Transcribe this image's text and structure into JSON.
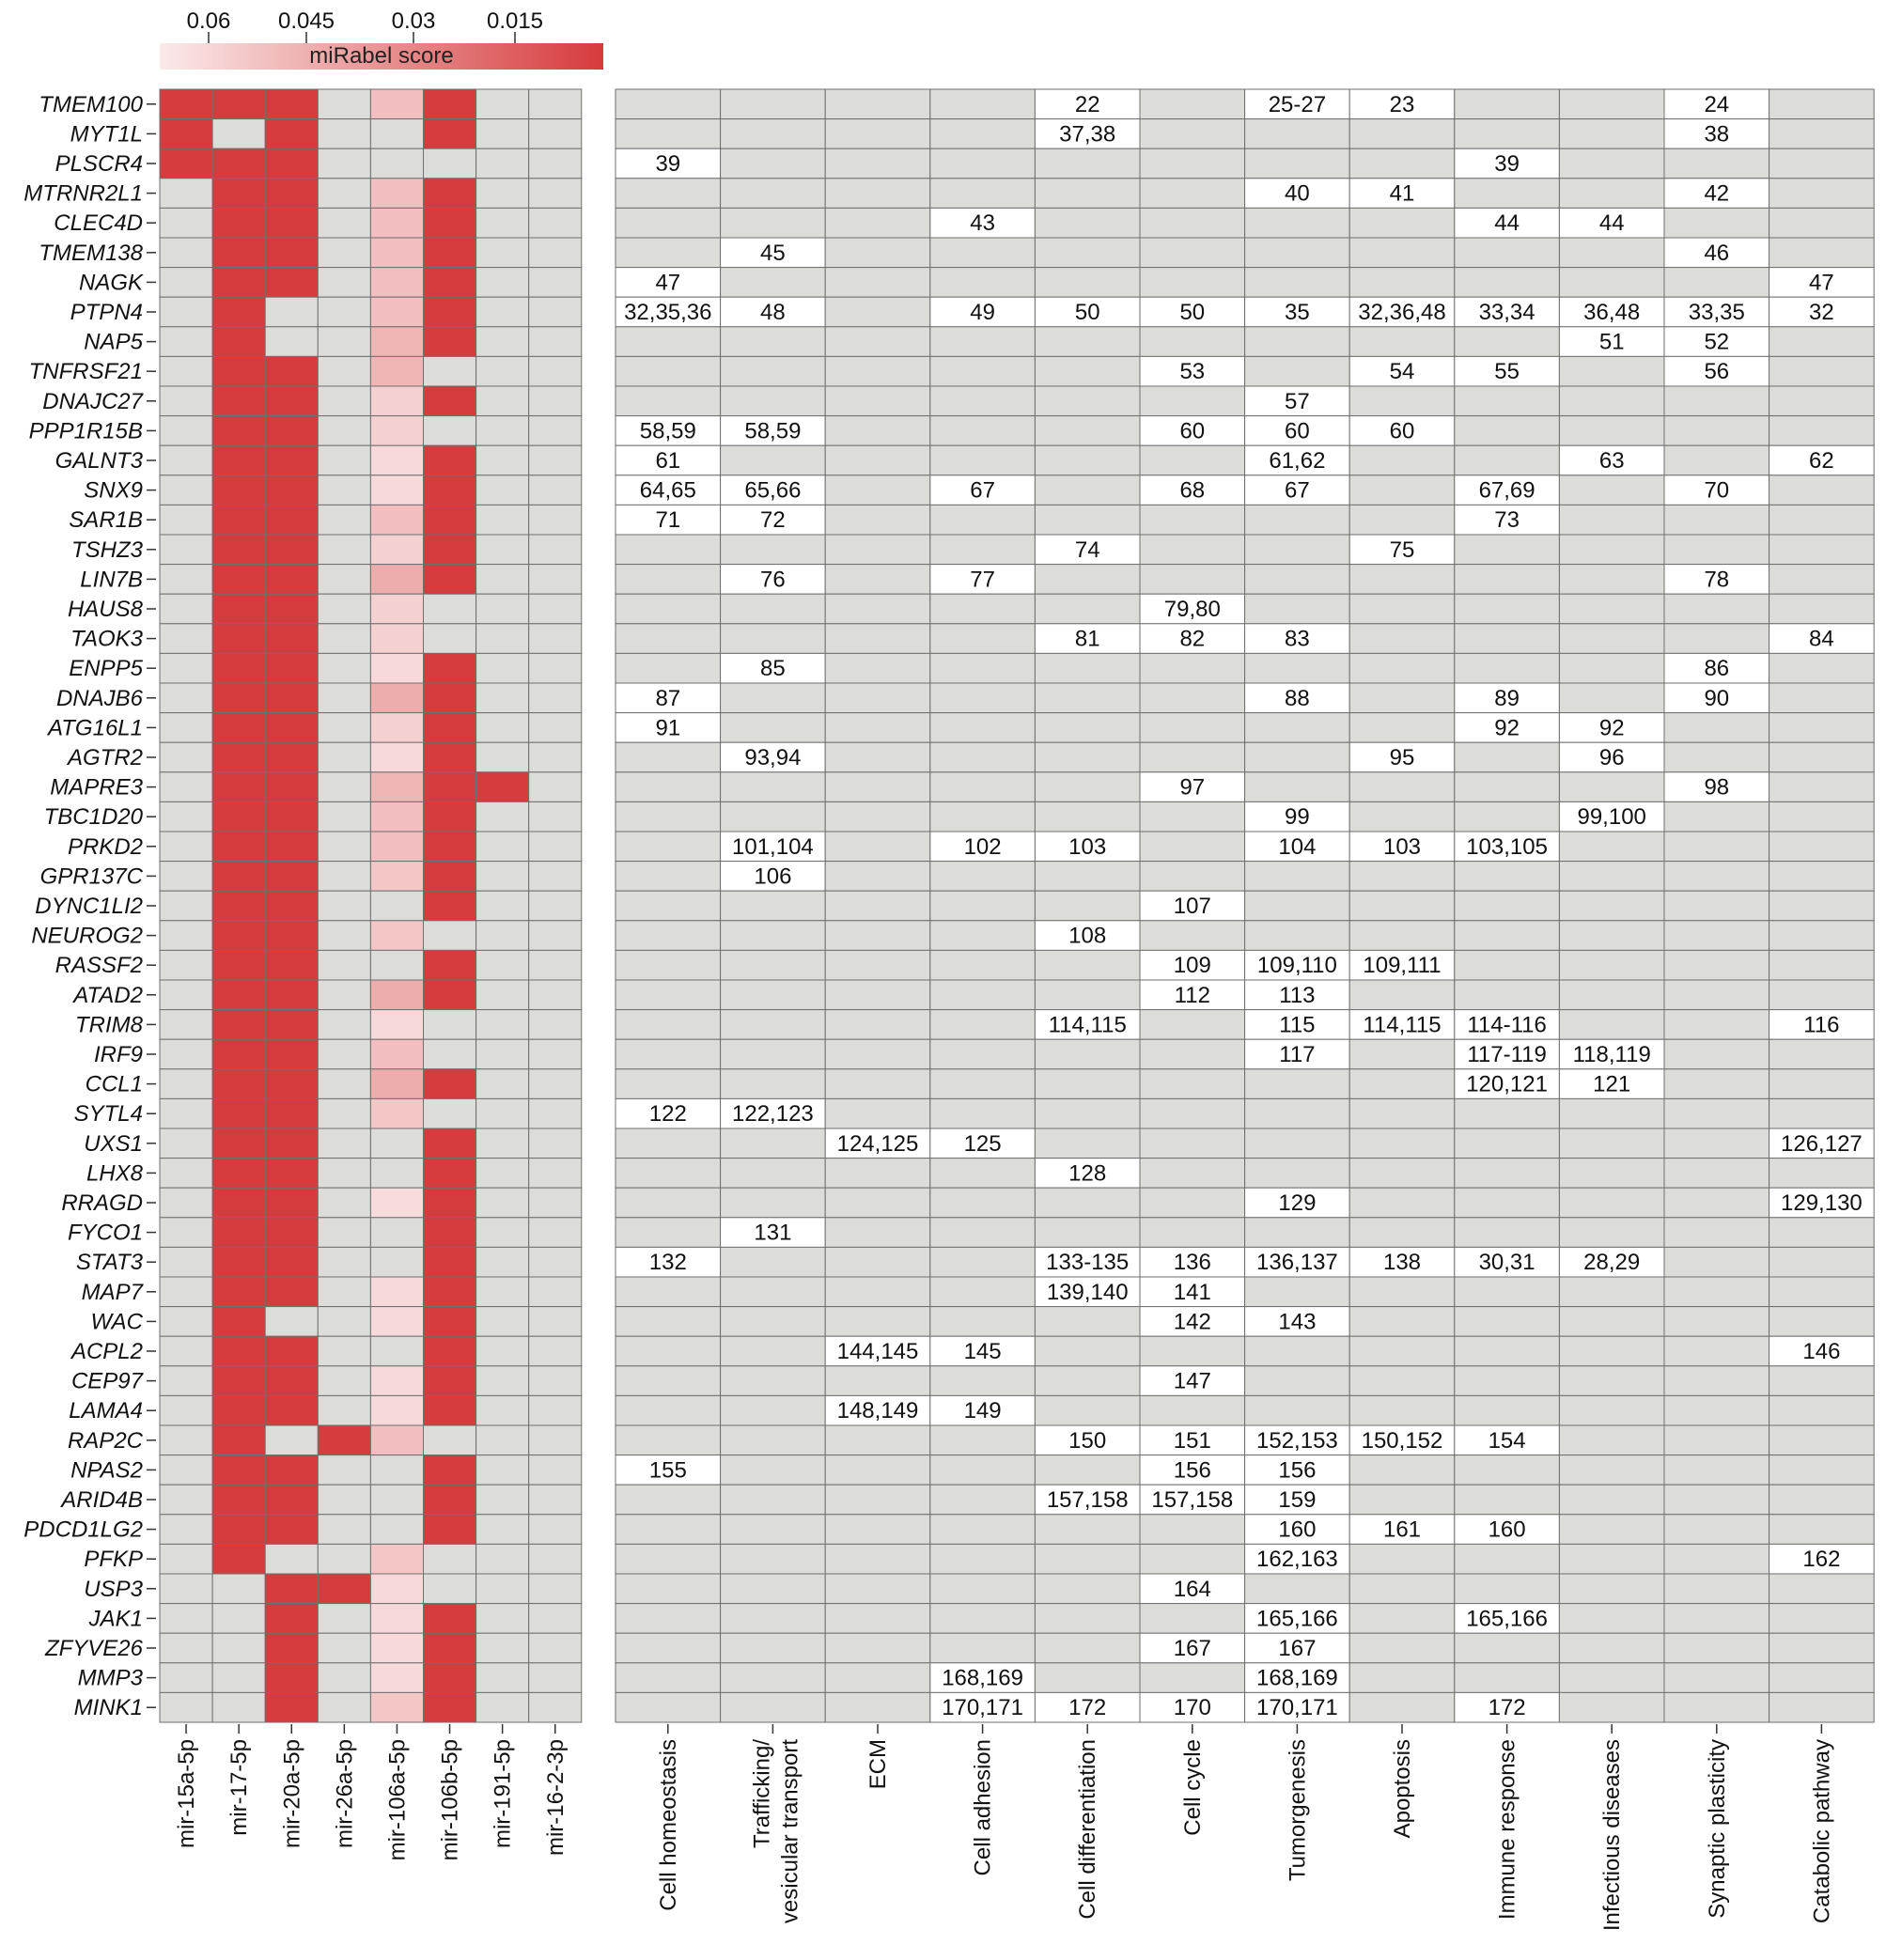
{
  "chart_data": {
    "type": "heatmap",
    "colorbar": {
      "title": "miRabel score",
      "ticks": [
        "0.06",
        "0.045",
        "0.03",
        "0.015"
      ],
      "colors": {
        "high": "#d63b3d",
        "low": "#fbeaea",
        "missing": "#dcdcd8"
      }
    },
    "genes": [
      "TMEM100",
      "MYT1L",
      "PLSCR4",
      "MTRNR2L1",
      "CLEC4D",
      "TMEM138",
      "NAGK",
      "PTPN4",
      "NAP5",
      "TNFRSF21",
      "DNAJC27",
      "PPP1R15B",
      "GALNT3",
      "SNX9",
      "SAR1B",
      "TSHZ3",
      "LIN7B",
      "HAUS8",
      "TAOK3",
      "ENPP5",
      "DNAJB6",
      "ATG16L1",
      "AGTR2",
      "MAPRE3",
      "TBC1D20",
      "PRKD2",
      "GPR137C",
      "DYNC1LI2",
      "NEUROG2",
      "RASSF2",
      "ATAD2",
      "TRIM8",
      "IRF9",
      "CCL1",
      "SYTL4",
      "UXS1",
      "LHX8",
      "RRAGD",
      "FYCO1",
      "STAT3",
      "MAP7",
      "WAC",
      "ACPL2",
      "CEP97",
      "LAMA4",
      "RAP2C",
      "NPAS2",
      "ARID4B",
      "PDCD1LG2",
      "PFKP",
      "USP3",
      "JAK1",
      "ZFYVE26",
      "MMP3",
      "MINK1"
    ],
    "mirnas": [
      "mir-15a-5p",
      "mir-17-5p",
      "mir-20a-5p",
      "mir-26a-5p",
      "mir-106a-5p",
      "mir-106b-5p",
      "mir-191-5p",
      "mir-16-2-3p"
    ],
    "heat_matrix": [
      [
        1,
        1,
        1,
        0,
        0.25,
        1,
        0,
        0
      ],
      [
        1,
        0,
        1,
        0,
        0,
        1,
        0,
        0
      ],
      [
        1,
        1,
        1,
        0,
        0,
        0,
        0,
        0
      ],
      [
        0,
        1,
        1,
        0,
        0.25,
        1,
        0,
        0
      ],
      [
        0,
        1,
        1,
        0,
        0.25,
        1,
        0,
        0
      ],
      [
        0,
        1,
        1,
        0,
        0.25,
        1,
        0,
        0
      ],
      [
        0,
        1,
        1,
        0,
        0.25,
        1,
        0,
        0
      ],
      [
        0,
        1,
        0,
        0,
        0.25,
        1,
        0,
        0
      ],
      [
        0,
        1,
        0,
        0,
        0.3,
        1,
        0,
        0
      ],
      [
        0,
        1,
        1,
        0,
        0.3,
        0,
        0,
        0
      ],
      [
        0,
        1,
        1,
        0,
        0.15,
        1,
        0,
        0
      ],
      [
        0,
        1,
        1,
        0,
        0.15,
        0,
        0,
        0
      ],
      [
        0,
        1,
        1,
        0,
        0.1,
        1,
        0,
        0
      ],
      [
        0,
        1,
        1,
        0,
        0.1,
        1,
        0,
        0
      ],
      [
        0,
        1,
        1,
        0,
        0.25,
        1,
        0,
        0
      ],
      [
        0,
        1,
        1,
        0,
        0.15,
        1,
        0,
        0
      ],
      [
        0,
        1,
        1,
        0,
        0.35,
        1,
        0,
        0
      ],
      [
        0,
        1,
        1,
        0,
        0.15,
        0,
        0,
        0
      ],
      [
        0,
        1,
        1,
        0,
        0.15,
        0,
        0,
        0
      ],
      [
        0,
        1,
        1,
        0,
        0.1,
        1,
        0,
        0
      ],
      [
        0,
        1,
        1,
        0,
        0.35,
        1,
        0,
        0
      ],
      [
        0,
        1,
        1,
        0,
        0.15,
        1,
        0,
        0
      ],
      [
        0,
        1,
        1,
        0,
        0.1,
        1,
        0,
        0
      ],
      [
        0,
        1,
        1,
        0,
        0.3,
        1,
        1,
        0
      ],
      [
        0,
        1,
        1,
        0,
        0.25,
        1,
        0,
        0
      ],
      [
        0,
        1,
        1,
        0,
        0.25,
        1,
        0,
        0
      ],
      [
        0,
        1,
        1,
        0,
        0.2,
        1,
        0,
        0
      ],
      [
        0,
        1,
        1,
        0,
        0,
        1,
        0,
        0
      ],
      [
        0,
        1,
        1,
        0,
        0.2,
        0,
        0,
        0
      ],
      [
        0,
        1,
        1,
        0,
        0,
        1,
        0,
        0
      ],
      [
        0,
        1,
        1,
        0,
        0.35,
        1,
        0,
        0
      ],
      [
        0,
        1,
        1,
        0,
        0.1,
        0,
        0,
        0
      ],
      [
        0,
        1,
        1,
        0,
        0.25,
        0,
        0,
        0
      ],
      [
        0,
        1,
        1,
        0,
        0.35,
        1,
        0,
        0
      ],
      [
        0,
        1,
        1,
        0,
        0.2,
        0,
        0,
        0
      ],
      [
        0,
        1,
        1,
        0,
        0,
        1,
        0,
        0
      ],
      [
        0,
        1,
        1,
        0,
        0,
        1,
        0,
        0
      ],
      [
        0,
        1,
        1,
        0,
        0.08,
        1,
        0,
        0
      ],
      [
        0,
        1,
        1,
        0,
        0,
        1,
        0,
        0
      ],
      [
        0,
        1,
        1,
        0,
        0,
        1,
        0,
        0
      ],
      [
        0,
        1,
        1,
        0,
        0.1,
        1,
        0,
        0
      ],
      [
        0,
        1,
        0,
        0,
        0.1,
        1,
        0,
        0
      ],
      [
        0,
        1,
        1,
        0,
        0,
        1,
        0,
        0
      ],
      [
        0,
        1,
        1,
        0,
        0.1,
        1,
        0,
        0
      ],
      [
        0,
        1,
        1,
        0,
        0.1,
        1,
        0,
        0
      ],
      [
        0,
        1,
        0,
        1,
        0.25,
        0,
        0,
        0
      ],
      [
        0,
        1,
        1,
        0,
        0,
        1,
        0,
        0
      ],
      [
        0,
        1,
        1,
        0,
        0,
        1,
        0,
        0
      ],
      [
        0,
        1,
        1,
        0,
        0,
        1,
        0,
        0
      ],
      [
        0,
        1,
        0,
        0,
        0.2,
        0,
        0,
        0
      ],
      [
        0,
        0,
        1,
        1,
        0.1,
        0,
        0,
        0
      ],
      [
        0,
        0,
        1,
        0,
        0.1,
        1,
        0,
        0
      ],
      [
        0,
        0,
        1,
        0,
        0.1,
        1,
        0,
        0
      ],
      [
        0,
        0,
        1,
        0,
        0.1,
        1,
        0,
        0
      ],
      [
        0,
        0,
        1,
        0,
        0.2,
        1,
        0,
        0
      ]
    ],
    "categories": [
      "Cell homeostasis",
      "Trafficking/\nvesicular transport",
      "ECM",
      "Cell adhesion",
      "Cell differentiation",
      "Cell cycle",
      "Tumorgenesis",
      "Apoptosis",
      "Immune response",
      "Infectious diseases",
      "Synaptic plasticity",
      "Catabolic pathway"
    ],
    "annotations": [
      [
        "",
        "",
        "",
        "",
        "22",
        "",
        "25-27",
        "23",
        "",
        "",
        "24",
        ""
      ],
      [
        "",
        "",
        "",
        "",
        "37,38",
        "",
        "",
        "",
        "",
        "",
        "38",
        ""
      ],
      [
        "39",
        "",
        "",
        "",
        "",
        "",
        "",
        "",
        "39",
        "",
        "",
        ""
      ],
      [
        "",
        "",
        "",
        "",
        "",
        "",
        "40",
        "41",
        "",
        "",
        "42",
        ""
      ],
      [
        "",
        "",
        "",
        "43",
        "",
        "",
        "",
        "",
        "44",
        "44",
        "",
        ""
      ],
      [
        "",
        "45",
        "",
        "",
        "",
        "",
        "",
        "",
        "",
        "",
        "46",
        ""
      ],
      [
        "47",
        "",
        "",
        "",
        "",
        "",
        "",
        "",
        "",
        "",
        "",
        "47"
      ],
      [
        "32,35,36",
        "48",
        "",
        "49",
        "50",
        "50",
        "35",
        "32,36,48",
        "33,34",
        "36,48",
        "33,35",
        "32"
      ],
      [
        "",
        "",
        "",
        "",
        "",
        "",
        "",
        "",
        "",
        "51",
        "52",
        ""
      ],
      [
        "",
        "",
        "",
        "",
        "",
        "53",
        "",
        "54",
        "55",
        "",
        "56",
        ""
      ],
      [
        "",
        "",
        "",
        "",
        "",
        "",
        "57",
        "",
        "",
        "",
        "",
        ""
      ],
      [
        "58,59",
        "58,59",
        "",
        "",
        "",
        "60",
        "60",
        "60",
        "",
        "",
        "",
        ""
      ],
      [
        "61",
        "",
        "",
        "",
        "",
        "",
        "61,62",
        "",
        "",
        "63",
        "",
        "62"
      ],
      [
        "64,65",
        "65,66",
        "",
        "67",
        "",
        "68",
        "67",
        "",
        "67,69",
        "",
        "70",
        ""
      ],
      [
        "71",
        "72",
        "",
        "",
        "",
        "",
        "",
        "",
        "73",
        "",
        "",
        ""
      ],
      [
        "",
        "",
        "",
        "",
        "74",
        "",
        "",
        "75",
        "",
        "",
        "",
        ""
      ],
      [
        "",
        "76",
        "",
        "77",
        "",
        "",
        "",
        "",
        "",
        "",
        "78",
        ""
      ],
      [
        "",
        "",
        "",
        "",
        "",
        "79,80",
        "",
        "",
        "",
        "",
        "",
        ""
      ],
      [
        "",
        "",
        "",
        "",
        "81",
        "82",
        "83",
        "",
        "",
        "",
        "",
        "84"
      ],
      [
        "",
        "85",
        "",
        "",
        "",
        "",
        "",
        "",
        "",
        "",
        "86",
        ""
      ],
      [
        "87",
        "",
        "",
        "",
        "",
        "",
        "88",
        "",
        "89",
        "",
        "90",
        ""
      ],
      [
        "91",
        "",
        "",
        "",
        "",
        "",
        "",
        "",
        "92",
        "92",
        "",
        ""
      ],
      [
        "",
        "93,94",
        "",
        "",
        "",
        "",
        "",
        "95",
        "",
        "96",
        "",
        ""
      ],
      [
        "",
        "",
        "",
        "",
        "",
        "97",
        "",
        "",
        "",
        "",
        "98",
        ""
      ],
      [
        "",
        "",
        "",
        "",
        "",
        "",
        "99",
        "",
        "",
        "99,100",
        "",
        ""
      ],
      [
        "",
        "101,104",
        "",
        "102",
        "103",
        "",
        "104",
        "103",
        "103,105",
        "",
        "",
        ""
      ],
      [
        "",
        "106",
        "",
        "",
        "",
        "",
        "",
        "",
        "",
        "",
        "",
        ""
      ],
      [
        "",
        "",
        "",
        "",
        "",
        "107",
        "",
        "",
        "",
        "",
        "",
        ""
      ],
      [
        "",
        "",
        "",
        "",
        "108",
        "",
        "",
        "",
        "",
        "",
        "",
        ""
      ],
      [
        "",
        "",
        "",
        "",
        "",
        "109",
        "109,110",
        "109,111",
        "",
        "",
        "",
        ""
      ],
      [
        "",
        "",
        "",
        "",
        "",
        "112",
        "113",
        "",
        "",
        "",
        "",
        ""
      ],
      [
        "",
        "",
        "",
        "",
        "114,115",
        "",
        "115",
        "114,115",
        "114-116",
        "",
        "",
        "116"
      ],
      [
        "",
        "",
        "",
        "",
        "",
        "",
        "117",
        "",
        "117-119",
        "118,119",
        "",
        ""
      ],
      [
        "",
        "",
        "",
        "",
        "",
        "",
        "",
        "",
        "120,121",
        "121",
        "",
        ""
      ],
      [
        "122",
        "122,123",
        "",
        "",
        "",
        "",
        "",
        "",
        "",
        "",
        "",
        ""
      ],
      [
        "",
        "",
        "124,125",
        "125",
        "",
        "",
        "",
        "",
        "",
        "",
        "",
        "126,127"
      ],
      [
        "",
        "",
        "",
        "",
        "128",
        "",
        "",
        "",
        "",
        "",
        "",
        ""
      ],
      [
        "",
        "",
        "",
        "",
        "",
        "",
        "129",
        "",
        "",
        "",
        "",
        "129,130"
      ],
      [
        "",
        "131",
        "",
        "",
        "",
        "",
        "",
        "",
        "",
        "",
        "",
        ""
      ],
      [
        "132",
        "",
        "",
        "",
        "133-135",
        "136",
        "136,137",
        "138",
        "30,31",
        "28,29",
        "",
        ""
      ],
      [
        "",
        "",
        "",
        "",
        "139,140",
        "141",
        "",
        "",
        "",
        "",
        "",
        ""
      ],
      [
        "",
        "",
        "",
        "",
        "",
        "142",
        "143",
        "",
        "",
        "",
        "",
        ""
      ],
      [
        "",
        "",
        "144,145",
        "145",
        "",
        "",
        "",
        "",
        "",
        "",
        "",
        "146"
      ],
      [
        "",
        "",
        "",
        "",
        "",
        "147",
        "",
        "",
        "",
        "",
        "",
        ""
      ],
      [
        "",
        "",
        "148,149",
        "149",
        "",
        "",
        "",
        "",
        "",
        "",
        "",
        ""
      ],
      [
        "",
        "",
        "",
        "",
        "150",
        "151",
        "152,153",
        "150,152",
        "154",
        "",
        "",
        ""
      ],
      [
        "155",
        "",
        "",
        "",
        "",
        "156",
        "156",
        "",
        "",
        "",
        "",
        ""
      ],
      [
        "",
        "",
        "",
        "",
        "157,158",
        "157,158",
        "159",
        "",
        "",
        "",
        "",
        ""
      ],
      [
        "",
        "",
        "",
        "",
        "",
        "",
        "160",
        "161",
        "160",
        "",
        "",
        ""
      ],
      [
        "",
        "",
        "",
        "",
        "",
        "",
        "162,163",
        "",
        "",
        "",
        "",
        "162"
      ],
      [
        "",
        "",
        "",
        "",
        "",
        "164",
        "",
        "",
        "",
        "",
        "",
        ""
      ],
      [
        "",
        "",
        "",
        "",
        "",
        "",
        "165,166",
        "",
        "165,166",
        "",
        "",
        ""
      ],
      [
        "",
        "",
        "",
        "",
        "",
        "167",
        "167",
        "",
        "",
        "",
        "",
        ""
      ],
      [
        "",
        "",
        "",
        "168,169",
        "",
        "",
        "168,169",
        "",
        "",
        "",
        "",
        ""
      ],
      [
        "",
        "",
        "",
        "170,171",
        "172",
        "170",
        "170,171",
        "",
        "172",
        "",
        "",
        ""
      ]
    ]
  }
}
